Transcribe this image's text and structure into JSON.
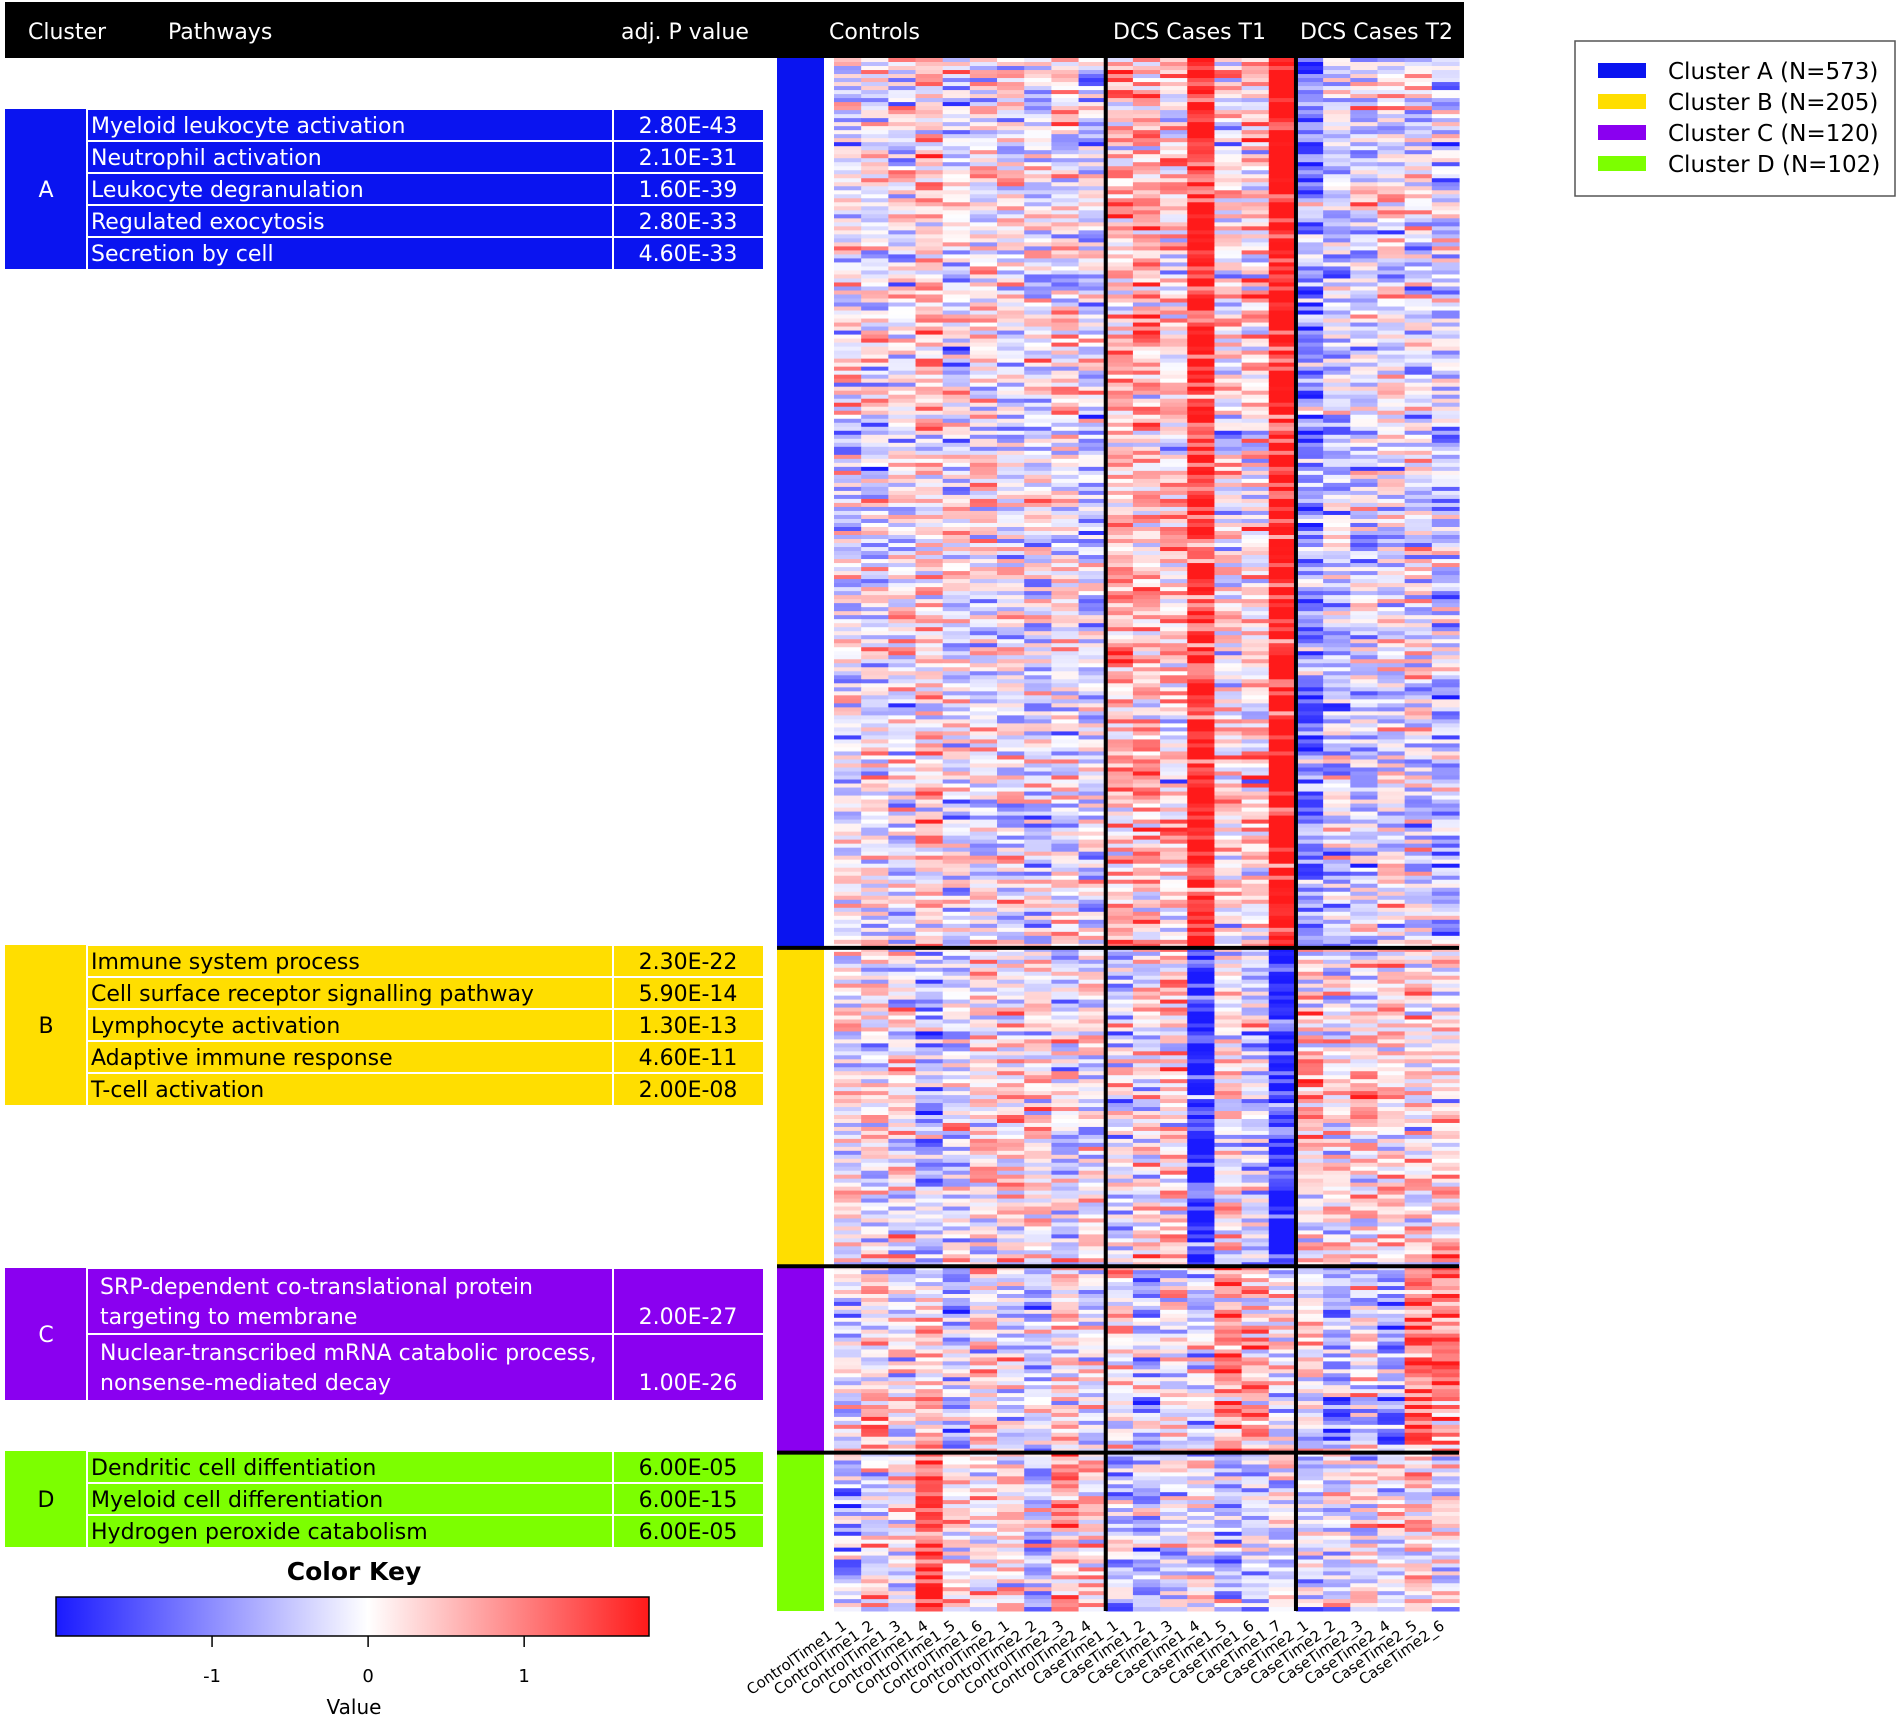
{
  "header": {
    "cluster": "Cluster",
    "pathways": "Pathways",
    "pvalue": "adj. P value",
    "controls": "Controls",
    "t1": "DCS Cases T1",
    "t2": "DCS Cases T2"
  },
  "colors": {
    "A": "#0a14f0",
    "B": "#ffde00",
    "C": "#8a00f0",
    "D": "#7cff00",
    "header_bg": "#000000",
    "heat_low": "#1a1aff",
    "heat_mid": "#ffffff",
    "heat_high": "#ff1a1a"
  },
  "legend": [
    {
      "label": "Cluster A (N=573)",
      "color": "#0a14f0"
    },
    {
      "label": "Cluster B (N=205)",
      "color": "#ffde00"
    },
    {
      "label": "Cluster C (N=120)",
      "color": "#8a00f0"
    },
    {
      "label": "Cluster D (N=102)",
      "color": "#7cff00"
    }
  ],
  "clusters": [
    {
      "id": "A",
      "text_color": "#ffffff",
      "pathways": [
        {
          "lines": [
            "Myeloid leukocyte activation"
          ],
          "p": "2.80E-43"
        },
        {
          "lines": [
            "Neutrophil activation"
          ],
          "p": "2.10E-31"
        },
        {
          "lines": [
            "Leukocyte degranulation"
          ],
          "p": "1.60E-39"
        },
        {
          "lines": [
            "Regulated exocytosis"
          ],
          "p": "2.80E-33"
        },
        {
          "lines": [
            "Secretion by cell"
          ],
          "p": "4.60E-33"
        }
      ]
    },
    {
      "id": "B",
      "text_color": "#000000",
      "pathways": [
        {
          "lines": [
            "Immune system process"
          ],
          "p": "2.30E-22"
        },
        {
          "lines": [
            "Cell surface receptor signalling pathway"
          ],
          "p": "5.90E-14"
        },
        {
          "lines": [
            "Lymphocyte activation"
          ],
          "p": "1.30E-13"
        },
        {
          "lines": [
            "Adaptive immune response"
          ],
          "p": "4.60E-11"
        },
        {
          "lines": [
            "T-cell activation"
          ],
          "p": "2.00E-08"
        }
      ]
    },
    {
      "id": "C",
      "text_color": "#ffffff",
      "pathways": [
        {
          "lines": [
            "SRP-dependent co-translational protein",
            "targeting to membrane"
          ],
          "p": "2.00E-27"
        },
        {
          "lines": [
            "Nuclear-transcribed mRNA catabolic process,",
            "nonsense-mediated decay"
          ],
          "p": "1.00E-26"
        }
      ]
    },
    {
      "id": "D",
      "text_color": "#000000",
      "pathways": [
        {
          "lines": [
            "Dendritic cell diffentiation"
          ],
          "p": "6.00E-05"
        },
        {
          "lines": [
            "Myeloid cell differentiation"
          ],
          "p": "6.00E-15"
        },
        {
          "lines": [
            "Hydrogen peroxide catabolism"
          ],
          "p": "6.00E-05"
        }
      ]
    }
  ],
  "chart_data": {
    "type": "heatmap",
    "samples": [
      "ControlTime1_1",
      "ControlTime1_2",
      "ControlTime1_3",
      "ControlTime1_4",
      "ControlTime1_5",
      "ControlTime1_6",
      "ControlTime2_1",
      "ControlTime2_2",
      "ControlTime2_3",
      "ControlTime2_4",
      "CaseTime1_1",
      "CaseTime1_2",
      "CaseTime1_3",
      "CaseTime1_4",
      "CaseTime1_5",
      "CaseTime1_6",
      "CaseTime1_7",
      "CaseTime2_1",
      "CaseTime2_2",
      "CaseTime2_3",
      "CaseTime2_4",
      "CaseTime2_5",
      "CaseTime2_6"
    ],
    "column_groups": [
      {
        "label": "Controls",
        "count": 10
      },
      {
        "label": "DCS Cases T1",
        "count": 7
      },
      {
        "label": "DCS Cases T2",
        "count": 6
      }
    ],
    "row_clusters": [
      {
        "name": "Cluster A",
        "n": 573,
        "mean_z": [
          -0.1,
          0.0,
          -0.1,
          0.3,
          -0.1,
          0.0,
          0.0,
          -0.1,
          0.0,
          -0.3,
          0.6,
          0.5,
          0.3,
          1.6,
          0.1,
          0.2,
          1.8,
          -0.8,
          -0.3,
          -0.2,
          -0.1,
          -0.2,
          -0.3
        ]
      },
      {
        "name": "Cluster B",
        "n": 205,
        "mean_z": [
          0.0,
          0.1,
          0.1,
          -0.5,
          0.0,
          0.2,
          0.3,
          0.2,
          -0.1,
          0.0,
          -0.2,
          0.2,
          0.4,
          -1.4,
          0.0,
          -0.2,
          -1.6,
          0.3,
          0.2,
          0.3,
          0.2,
          0.2,
          0.3
        ]
      },
      {
        "name": "Cluster C",
        "n": 120,
        "mean_z": [
          -0.2,
          0.3,
          -0.2,
          0.1,
          -0.6,
          0.2,
          -0.2,
          -0.4,
          0.3,
          -0.1,
          0.1,
          -0.3,
          0.0,
          -0.3,
          0.8,
          0.4,
          -0.1,
          0.1,
          -0.6,
          0.0,
          -0.7,
          0.8,
          1.0
        ]
      },
      {
        "name": "Cluster D",
        "n": 102,
        "mean_z": [
          -0.5,
          0.1,
          0.0,
          1.2,
          0.3,
          0.2,
          0.3,
          -0.2,
          0.8,
          0.2,
          -0.5,
          -0.2,
          -0.3,
          0.0,
          -0.4,
          -0.3,
          0.0,
          -0.3,
          0.0,
          0.1,
          0.0,
          0.2,
          0.1
        ]
      }
    ],
    "color_key": {
      "title": "Color Key",
      "xlabel": "Value",
      "ticks": [
        -1,
        0,
        1
      ],
      "tick_labels": [
        "-1",
        "0",
        "1"
      ],
      "range": [
        -2,
        1.8
      ]
    }
  }
}
